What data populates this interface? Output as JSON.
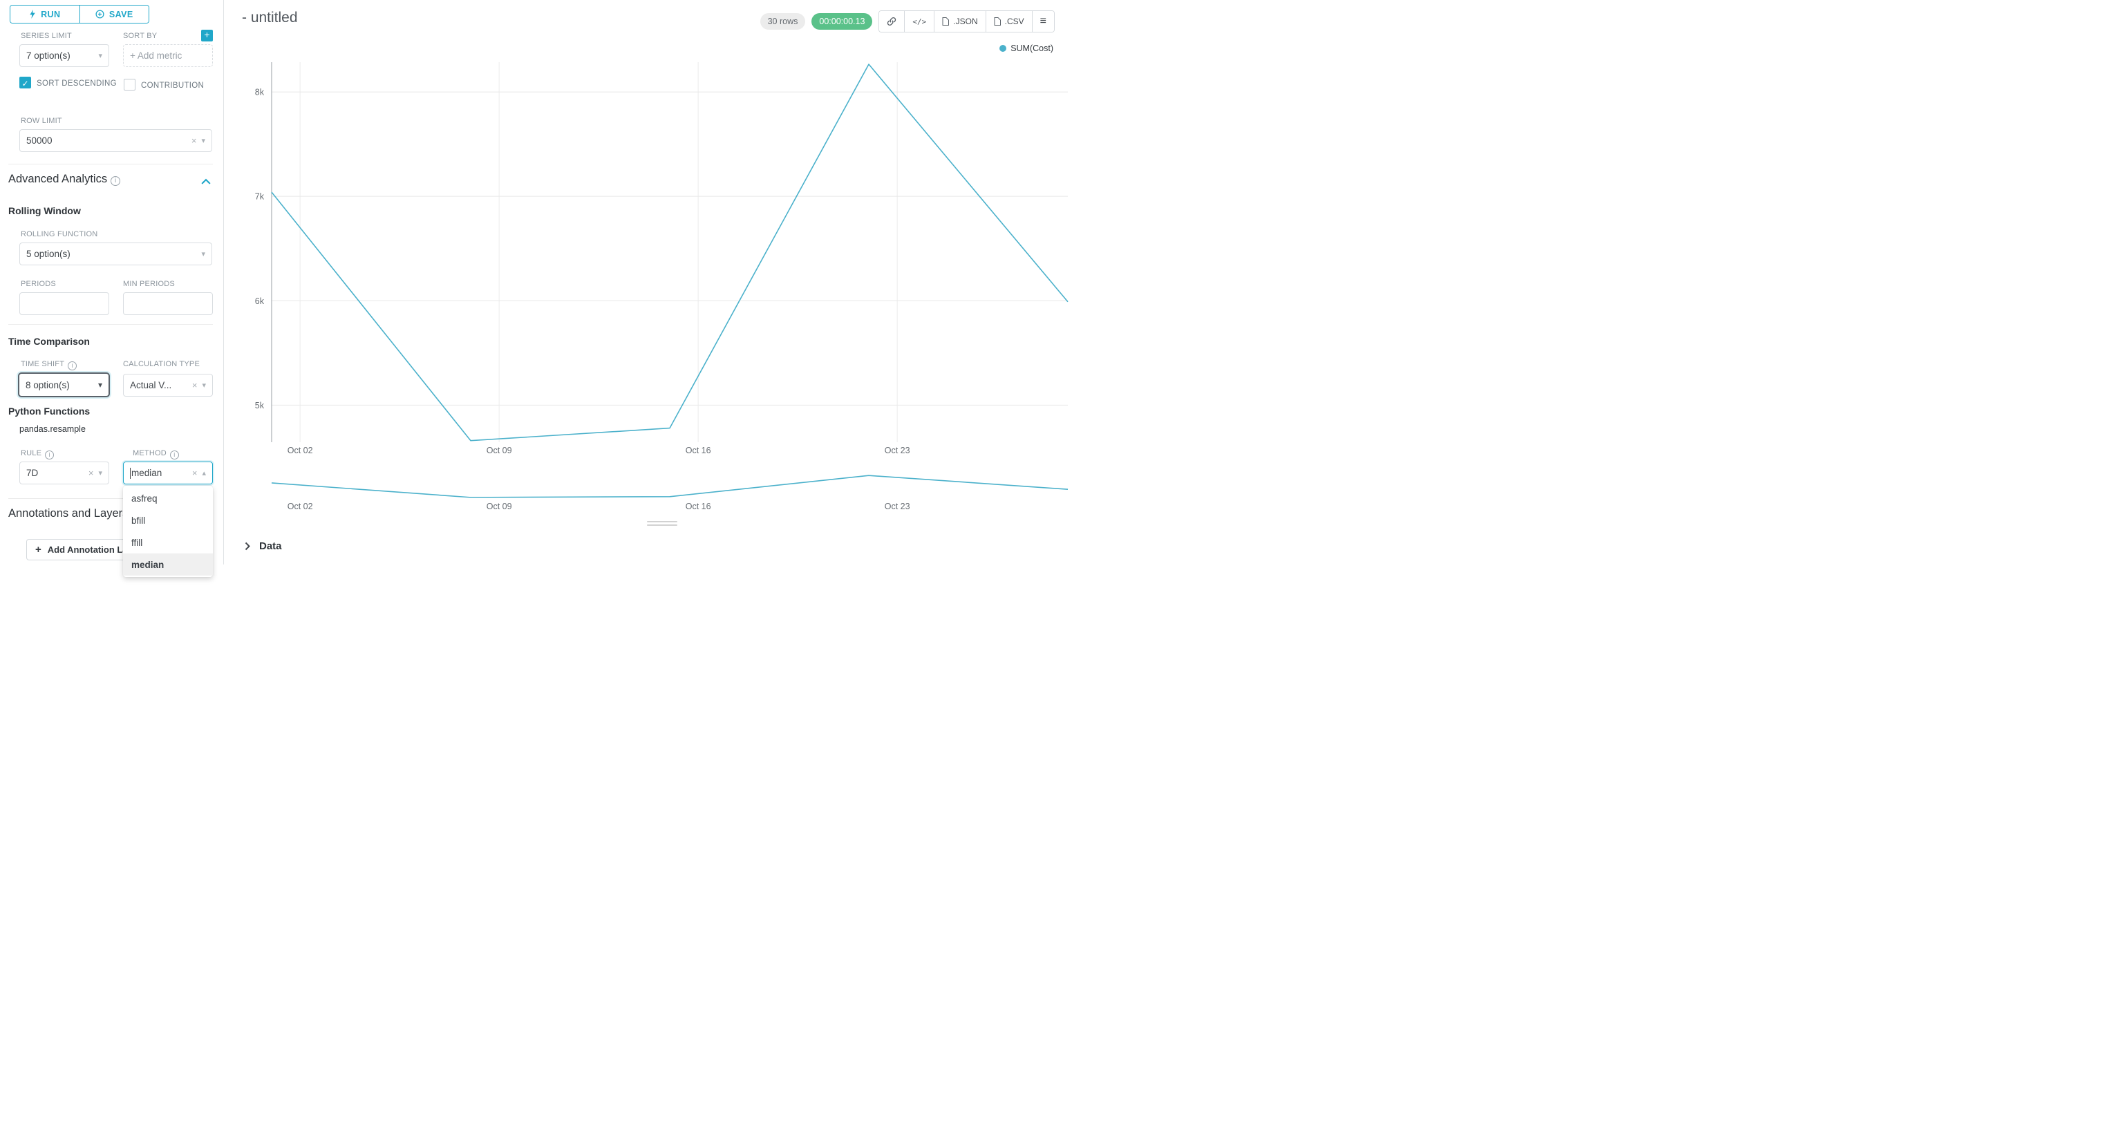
{
  "colors": {
    "primary": "#20a7c9",
    "success": "#5ac189",
    "series": "#4bb1cb"
  },
  "toolbar": {
    "run": "RUN",
    "save": "SAVE"
  },
  "controls": {
    "series_limit": {
      "label": "SERIES LIMIT",
      "value": "7 option(s)"
    },
    "sort_by": {
      "label": "SORT BY",
      "placeholder": "+ Add metric"
    },
    "sort_descending": {
      "label": "SORT DESCENDING",
      "checked": true
    },
    "contribution": {
      "label": "CONTRIBUTION",
      "checked": false
    },
    "row_limit": {
      "label": "ROW LIMIT",
      "value": "50000"
    }
  },
  "advanced_analytics": {
    "title": "Advanced Analytics",
    "rolling_window": {
      "title": "Rolling Window",
      "rolling_function": {
        "label": "ROLLING FUNCTION",
        "value": "5 option(s)"
      },
      "periods": {
        "label": "PERIODS",
        "value": ""
      },
      "min_periods": {
        "label": "MIN PERIODS",
        "value": ""
      }
    },
    "time_comparison": {
      "title": "Time Comparison",
      "time_shift": {
        "label": "TIME SHIFT",
        "value": "8 option(s)"
      },
      "calculation_type": {
        "label": "CALCULATION TYPE",
        "value": "Actual V..."
      }
    },
    "python_functions": {
      "title": "Python Functions",
      "module": "pandas.resample",
      "rule": {
        "label": "RULE",
        "value": "7D"
      },
      "method": {
        "label": "METHOD",
        "value": "median",
        "options": [
          "asfreq",
          "bfill",
          "ffill",
          "median"
        ],
        "selected": "median"
      }
    },
    "annotations": {
      "title": "Annotations and Layers",
      "add_button": "Add Annotation Layer"
    }
  },
  "header": {
    "title": "- untitled",
    "rows_badge": "30 rows",
    "timer": "00:00:00.13",
    "json_button": ".JSON",
    "csv_button": ".CSV"
  },
  "chart_data": {
    "type": "line",
    "series": [
      {
        "name": "SUM(Cost)",
        "values": [
          7040,
          4660,
          4780,
          8265,
          5990
        ]
      }
    ],
    "x": [
      "Oct 01",
      "Oct 08",
      "Oct 15",
      "Oct 22",
      "Oct 29"
    ],
    "x_tick_labels": [
      "Oct 02",
      "Oct 09",
      "Oct 16",
      "Oct 23"
    ],
    "y_ticks": [
      8000,
      7000,
      6000,
      5000
    ],
    "y_tick_labels": [
      "8k",
      "7k",
      "6k",
      "5k"
    ],
    "ylim": [
      4645,
      8285
    ],
    "title": "",
    "xlabel": "",
    "ylabel": "",
    "grid": true,
    "legend_position": "top-right"
  },
  "data_panel": {
    "title": "Data"
  }
}
